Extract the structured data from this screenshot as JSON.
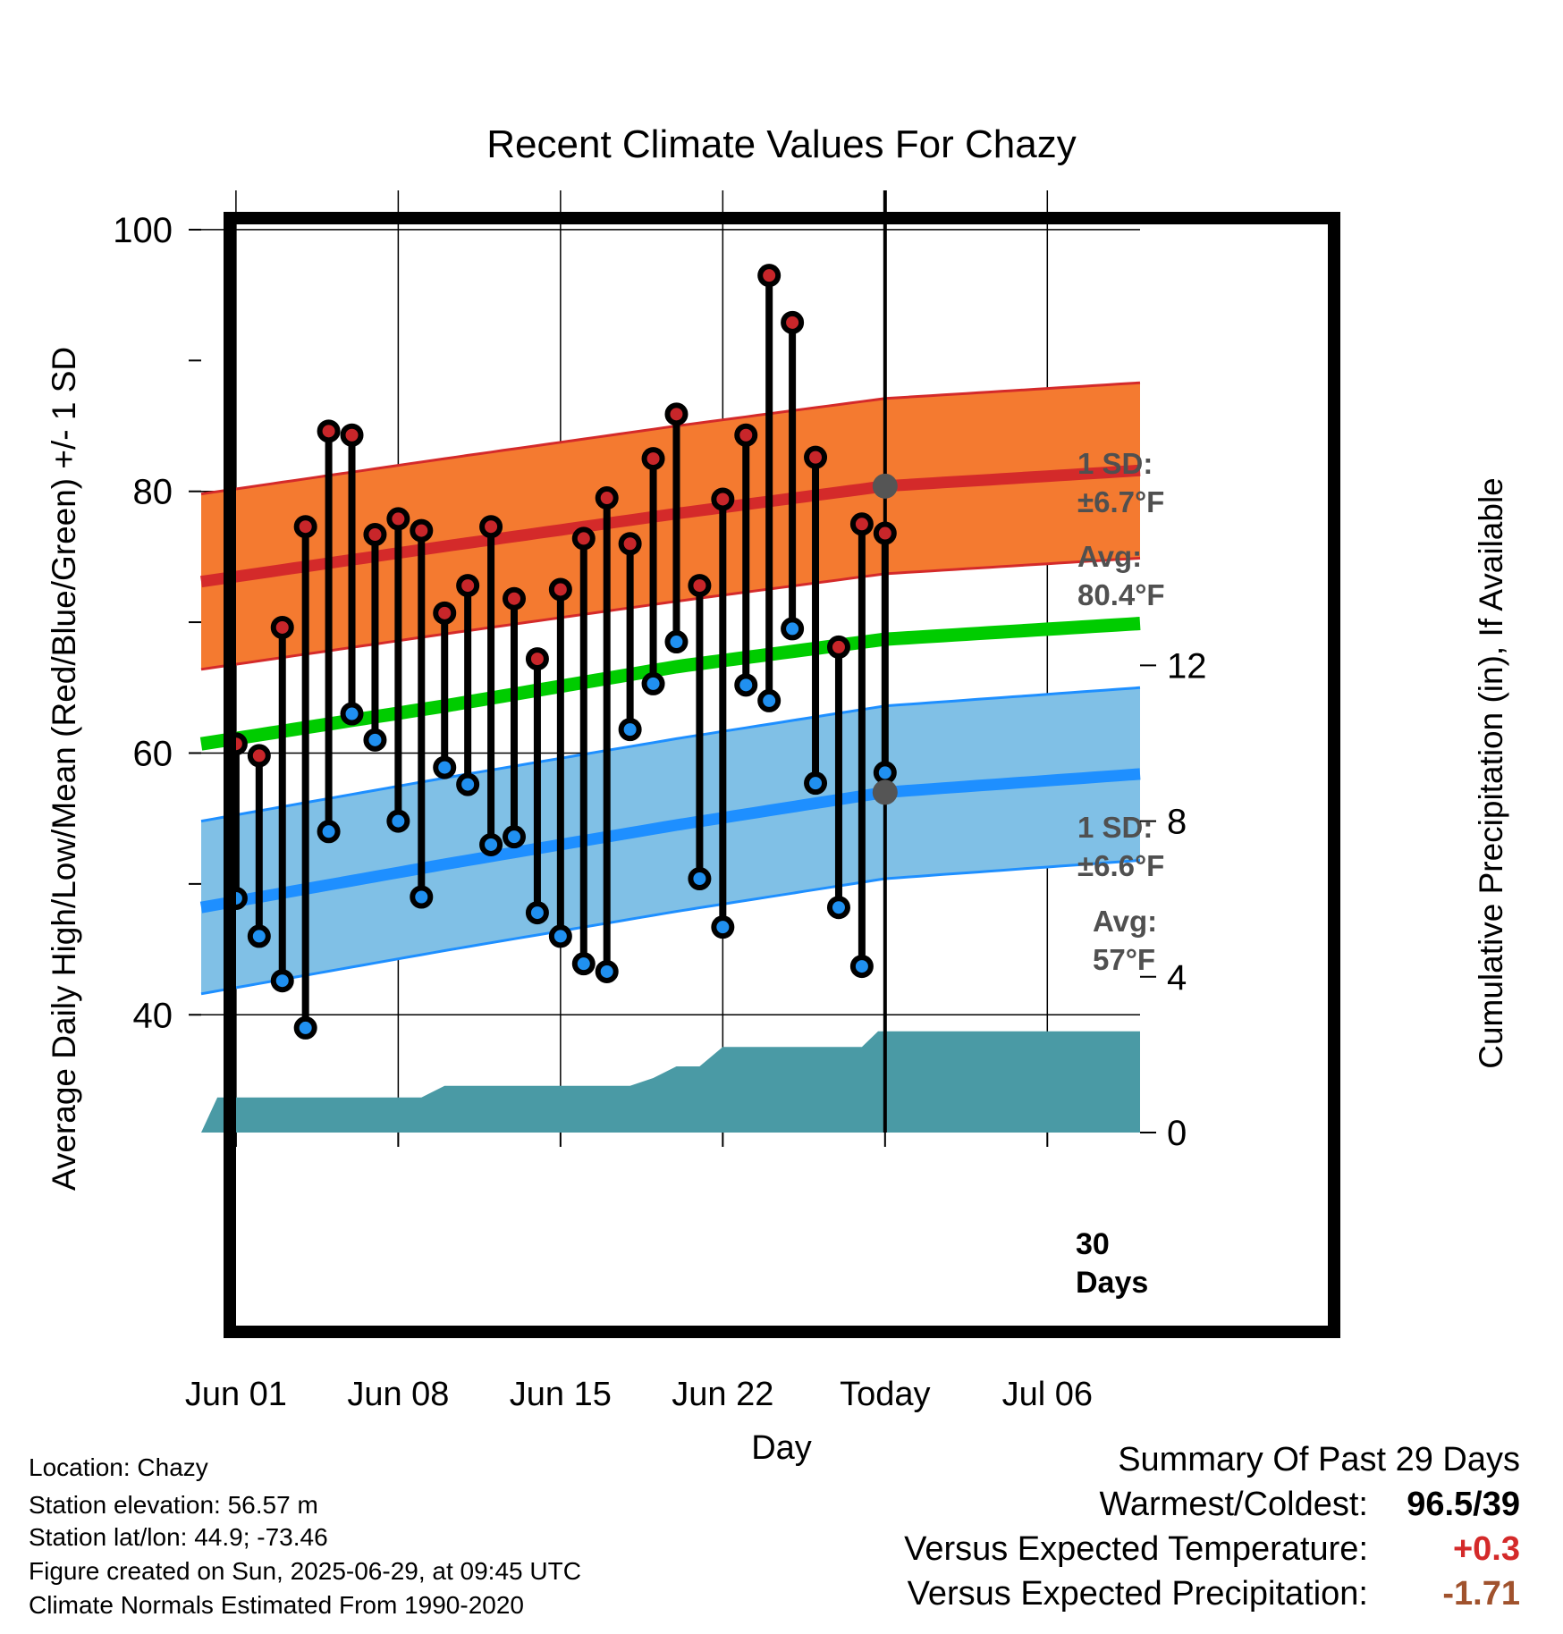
{
  "chart_data": {
    "type": "line",
    "title": "Recent Climate Values For Chazy",
    "xlabel": "Day",
    "ylabel": "Average Daily High/Low/Mean (Red/Blue/Green) +/- 1 SD",
    "y2label": "Cumulative Precipitation (in), If Available",
    "x_range_day_index": [
      -1.5,
      39
    ],
    "x_ticks": [
      {
        "index": 0,
        "label": "Jun 01"
      },
      {
        "index": 7,
        "label": "Jun 08"
      },
      {
        "index": 14,
        "label": "Jun 15"
      },
      {
        "index": 21,
        "label": "Jun 22"
      },
      {
        "index": 28,
        "label": "Today"
      },
      {
        "index": 35,
        "label": "Jul 06"
      }
    ],
    "ylim": [
      31,
      103
    ],
    "y_ticks": [
      40,
      60,
      80,
      100
    ],
    "y2lim": [
      0,
      24.2
    ],
    "y2_ticks": [
      0,
      4,
      8,
      12
    ],
    "grid": true,
    "today_index": 28,
    "days": [
      "May 31",
      "Jun 01",
      "Jun 02",
      "Jun 03",
      "Jun 04",
      "Jun 05",
      "Jun 06",
      "Jun 07",
      "Jun 08",
      "Jun 09",
      "Jun 10",
      "Jun 11",
      "Jun 12",
      "Jun 13",
      "Jun 14",
      "Jun 15",
      "Jun 16",
      "Jun 17",
      "Jun 18",
      "Jun 19",
      "Jun 20",
      "Jun 21",
      "Jun 22",
      "Jun 23",
      "Jun 24",
      "Jun 25",
      "Jun 26",
      "Jun 27",
      "Jun 28"
    ],
    "highs": [
      60.7,
      59.8,
      69.6,
      77.3,
      84.6,
      84.3,
      76.7,
      77.9,
      77.0,
      70.7,
      72.8,
      77.3,
      71.8,
      67.2,
      72.5,
      76.4,
      79.5,
      76.0,
      82.5,
      85.9,
      72.8,
      79.4,
      84.3,
      96.5,
      92.9,
      82.6,
      68.1,
      77.5,
      76.8
    ],
    "lows": [
      48.9,
      46.0,
      42.6,
      39.0,
      54.0,
      63.0,
      61.0,
      54.8,
      49.0,
      58.9,
      57.6,
      53.0,
      53.6,
      47.8,
      46.0,
      43.9,
      43.3,
      61.8,
      65.3,
      68.5,
      50.4,
      46.7,
      65.2,
      64.0,
      69.5,
      57.7,
      48.2,
      43.7,
      58.5
    ],
    "normal_high": {
      "x": [
        -1.5,
        9,
        19,
        28,
        39
      ],
      "values": [
        73.1,
        75.8,
        78.3,
        80.4,
        81.6
      ]
    },
    "normal_high_sd": 6.7,
    "normal_low": {
      "x": [
        -1.5,
        9,
        19,
        28,
        39
      ],
      "values": [
        48.2,
        51.5,
        54.5,
        57.0,
        58.4
      ]
    },
    "normal_low_sd": 6.6,
    "normal_mean": {
      "x": [
        -1.5,
        9,
        19,
        28,
        39
      ],
      "values": [
        60.7,
        63.6,
        66.6,
        68.7,
        69.9
      ]
    },
    "precip_cumulative": {
      "x": [
        -1.5,
        -0.8,
        8,
        9,
        17,
        18,
        19,
        20,
        21,
        27,
        27.7,
        39
      ],
      "values": [
        0,
        0.9,
        0.9,
        1.2,
        1.2,
        1.4,
        1.7,
        1.7,
        2.2,
        2.2,
        2.6,
        2.6
      ]
    },
    "annotations": {
      "high_sd": [
        "1 SD:",
        "±6.7°F"
      ],
      "high_avg": [
        "Avg:",
        "80.4°F"
      ],
      "low_sd": [
        "1 SD:",
        "±6.6°F"
      ],
      "low_avg": [
        "Avg:",
        "57°F"
      ],
      "precip_days": [
        "30",
        "Days"
      ]
    },
    "colors": {
      "high_band": "#f47a30",
      "high_line": "#d42a2a",
      "low_band": "#80c0e6",
      "low_line": "#1e8fff",
      "mean_line": "#00cc00",
      "precip": "#4a9aa5",
      "high_marker": "#c8262a",
      "low_marker": "#2090f0",
      "annotation": "#505050"
    }
  },
  "info": {
    "location": "Location: Chazy",
    "elevation": "Station elevation: 56.57 m",
    "latlon": "Station lat/lon: 44.9; -73.46",
    "created": "Figure created on Sun, 2025-06-29, at 09:45 UTC",
    "normals": "Climate Normals Estimated From 1990-2020"
  },
  "summary": {
    "title": "Summary Of Past 29 Days",
    "warm_cold_label": "Warmest/Coldest:",
    "warm_cold_value": "96.5/39",
    "temp_label": "Versus Expected Temperature:",
    "temp_value": "+0.3",
    "temp_color": "#d42a2a",
    "precip_label": "Versus Expected Precipitation:",
    "precip_value": "-1.71",
    "precip_color": "#a0522d"
  }
}
